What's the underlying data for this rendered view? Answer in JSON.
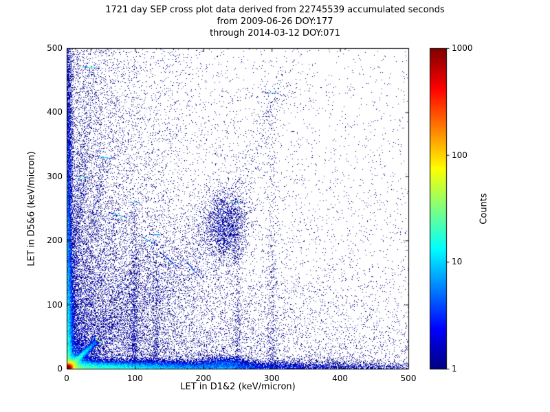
{
  "chart_data": {
    "type": "scatter",
    "title_lines": [
      "1721 day SEP cross plot data derived from 22745539 accumulated seconds",
      "from 2009-06-26 DOY:177",
      "through 2014-03-12 DOY:071"
    ],
    "xlabel": "LET in D1&2 (keV/micron)",
    "ylabel": "LET in D5&6 (keV/micron)",
    "xlim": [
      0,
      500
    ],
    "ylim": [
      0,
      500
    ],
    "xticks": [
      0,
      100,
      200,
      300,
      400,
      500
    ],
    "yticks": [
      0,
      100,
      200,
      300,
      400,
      500
    ],
    "grid": false,
    "background": "#ffffff",
    "frame_color": "#000000",
    "colorbar": {
      "label": "Counts",
      "scale": "log",
      "range": [
        1,
        1000
      ],
      "ticks": [
        1,
        10,
        100,
        1000
      ],
      "tick_labels": [
        "1",
        "10",
        "100",
        "1000"
      ],
      "colormap": "jet"
    },
    "density_features": [
      {
        "type": "gaussian",
        "cx": 2,
        "cy": 2,
        "sx": 3,
        "sy": 3,
        "count": 50000
      },
      {
        "type": "gaussian",
        "cx": 3,
        "cy": 3,
        "sx": 8,
        "sy": 8,
        "count": 15000
      },
      {
        "type": "gaussian",
        "cx": 5,
        "cy": 5,
        "sx": 18,
        "sy": 18,
        "count": 6000
      },
      {
        "type": "ray",
        "x1": 0,
        "y1": 0,
        "x2": 45,
        "y2": 45,
        "jitter": 2.5,
        "count": 6000,
        "falloff": 0.5
      },
      {
        "type": "band_x",
        "xscale": 130,
        "yscale": 6,
        "count": 25000
      },
      {
        "type": "gaussian",
        "cx": 232,
        "cy": 8,
        "sx": 18,
        "sy": 6,
        "count": 2000
      },
      {
        "type": "band_y",
        "yscale": 170,
        "xscale": 4,
        "count": 15000
      },
      {
        "type": "ray",
        "x1": 0,
        "y1": 0,
        "x2": 35,
        "y2": 470,
        "jitter": 5,
        "count": 1400,
        "falloff": 0.6
      },
      {
        "type": "ray",
        "x1": 0,
        "y1": 0,
        "x2": 22,
        "y2": 300,
        "jitter": 4,
        "count": 900,
        "falloff": 0.7
      },
      {
        "type": "ray",
        "x1": 0,
        "y1": 0,
        "x2": 55,
        "y2": 330,
        "jitter": 5,
        "count": 1000,
        "falloff": 0.6
      },
      {
        "type": "ray",
        "x1": 0,
        "y1": 0,
        "x2": 75,
        "y2": 240,
        "jitter": 6,
        "count": 900,
        "falloff": 0.7
      },
      {
        "type": "ray",
        "x1": 0,
        "y1": 0,
        "x2": 120,
        "y2": 200,
        "jitter": 8,
        "count": 700,
        "falloff": 0.7
      },
      {
        "type": "ray",
        "x1": 0,
        "y1": 0,
        "x2": 150,
        "y2": 170,
        "jitter": 9,
        "count": 600,
        "falloff": 0.7
      },
      {
        "type": "ray",
        "x1": 0,
        "y1": 0,
        "x2": 185,
        "y2": 155,
        "jitter": 10,
        "count": 500,
        "falloff": 0.7
      },
      {
        "type": "vstreak",
        "x": 98,
        "y0": 0,
        "y1": 260,
        "jitter": 3,
        "count": 700
      },
      {
        "type": "vstreak",
        "x": 130,
        "y0": 0,
        "y1": 210,
        "jitter": 3,
        "count": 450
      },
      {
        "type": "vstreak",
        "x": 250,
        "y0": 0,
        "y1": 260,
        "jitter": 3,
        "count": 400
      },
      {
        "type": "vstreak",
        "x": 300,
        "y0": 0,
        "y1": 430,
        "jitter": 4,
        "count": 500
      },
      {
        "type": "gaussian",
        "cx": 232,
        "cy": 225,
        "sx": 16,
        "sy": 28,
        "count": 2000
      },
      {
        "type": "ray",
        "x1": 232,
        "y1": 225,
        "x2": 320,
        "y2": 470,
        "jitter": 12,
        "count": 350,
        "falloff": 0
      },
      {
        "type": "ray",
        "x1": 60,
        "y1": 60,
        "x2": 240,
        "y2": 230,
        "jitter": 25,
        "count": 1200,
        "falloff": 0
      },
      {
        "type": "exp2d",
        "xscale": 140,
        "yscale": 140,
        "count": 12000
      },
      {
        "type": "strip_y",
        "xscale": 70,
        "count": 5000
      },
      {
        "type": "strip_x",
        "yscale": 70,
        "count": 2500
      },
      {
        "type": "uniform",
        "count": 2500
      }
    ]
  }
}
